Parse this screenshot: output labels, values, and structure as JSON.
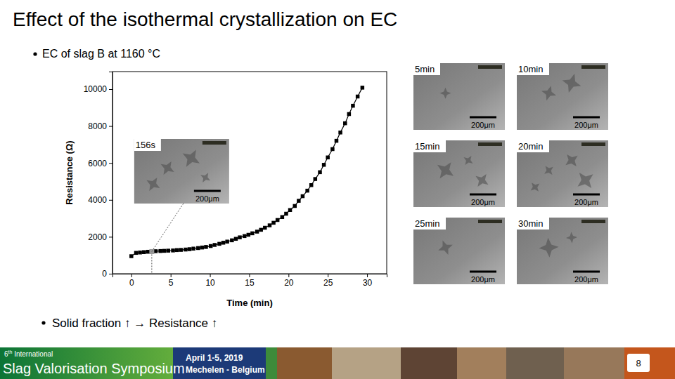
{
  "slide": {
    "title": "Effect of the isothermal crystallization on EC",
    "bullets": [
      "EC of slag B at 1160 °C",
      "Solid fraction ↑ → Resistance ↑"
    ],
    "micrographs": [
      {
        "label": "5min",
        "scale_bar": "200μm"
      },
      {
        "label": "10min",
        "scale_bar": "200μm"
      },
      {
        "label": "15min",
        "scale_bar": "200μm"
      },
      {
        "label": "20min",
        "scale_bar": "200μm"
      },
      {
        "label": "25min",
        "scale_bar": "200μm"
      },
      {
        "label": "30min",
        "scale_bar": "200μm"
      }
    ],
    "footer": {
      "edition": "6th International",
      "event": "Slag Valorisation Symposium",
      "dates": "April 1-5, 2019",
      "venue": "Mechelen - Belgium",
      "page": 8
    }
  },
  "chart_data": {
    "type": "line",
    "x_label": "Time (min)",
    "y_label": "Resistance (Ω)",
    "x": [
      0,
      0.6,
      1.1,
      1.6,
      2.1,
      2.6,
      3.1,
      3.7,
      4.2,
      4.7,
      5.3,
      5.8,
      6.3,
      6.9,
      7.4,
      7.9,
      8.5,
      9.0,
      9.5,
      10.1,
      10.6,
      11.2,
      11.7,
      12.2,
      12.8,
      13.3,
      13.8,
      14.4,
      14.9,
      15.4,
      16.0,
      16.5,
      17.0,
      17.6,
      18.1,
      18.6,
      19.2,
      19.7,
      20.2,
      20.8,
      21.3,
      21.8,
      22.4,
      22.9,
      23.4,
      24.0,
      24.5,
      25.0,
      25.6,
      26.1,
      26.6,
      27.2,
      27.7,
      28.2,
      28.8,
      29.4
    ],
    "values": [
      950,
      1130,
      1150,
      1170,
      1190,
      1200,
      1220,
      1230,
      1240,
      1250,
      1260,
      1280,
      1290,
      1310,
      1330,
      1360,
      1390,
      1420,
      1450,
      1500,
      1560,
      1620,
      1680,
      1740,
      1810,
      1890,
      1970,
      2040,
      2110,
      2190,
      2280,
      2380,
      2490,
      2620,
      2760,
      2910,
      3070,
      3250,
      3450,
      3670,
      3950,
      4200,
      4500,
      4800,
      5130,
      5500,
      5900,
      6300,
      6750,
      7200,
      7650,
      8150,
      8650,
      9100,
      9600,
      10080
    ],
    "color": "#000000",
    "marker": "square",
    "line_style": "solid",
    "xlim": [
      -2.4,
      32.5
    ],
    "xticks": [
      0,
      5,
      10,
      15,
      20,
      25,
      30
    ],
    "ylim": [
      0,
      10950
    ],
    "yticks": [
      0,
      2000,
      4000,
      6000,
      8000,
      10000
    ],
    "grid": false,
    "annotations": [
      {
        "x": 2.6,
        "y": 1200,
        "label": "156s",
        "scale_bar": "200μm"
      }
    ]
  }
}
